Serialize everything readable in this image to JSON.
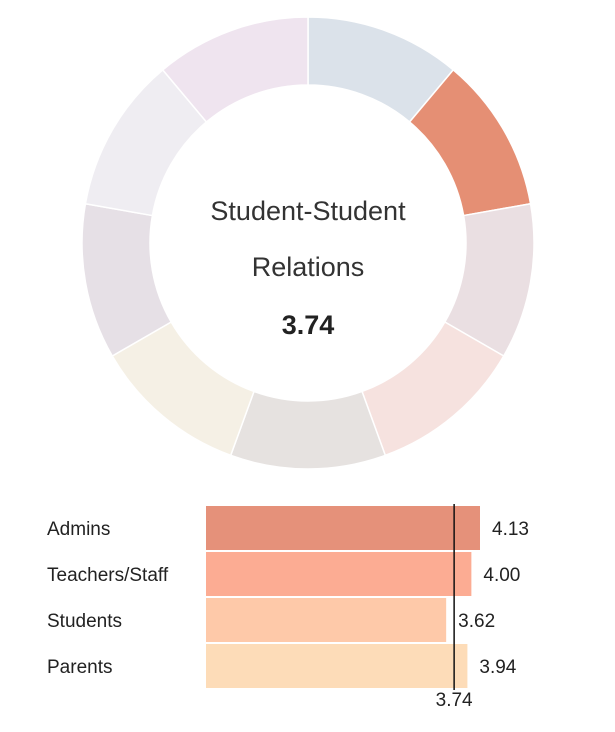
{
  "chart_data": [
    {
      "type": "pie",
      "subtype": "donut",
      "center_title": [
        "Student-Student",
        "Relations"
      ],
      "center_value": "3.74",
      "segments": [
        {
          "value": 1,
          "color": "#dbe2ea"
        },
        {
          "value": 1,
          "color": "#e58f74"
        },
        {
          "value": 1,
          "color": "#eadfe2"
        },
        {
          "value": 1,
          "color": "#f6e2df"
        },
        {
          "value": 1,
          "color": "#e6e2e0"
        },
        {
          "value": 1,
          "color": "#f5f0e5"
        },
        {
          "value": 1,
          "color": "#e6e0e6"
        },
        {
          "value": 1,
          "color": "#efedf2"
        },
        {
          "value": 1,
          "color": "#efe4ef"
        }
      ]
    },
    {
      "type": "bar",
      "orientation": "horizontal",
      "categories": [
        "Admins",
        "Teachers/Staff",
        "Students",
        "Parents"
      ],
      "values": [
        4.13,
        4.0,
        3.62,
        3.94
      ],
      "value_labels": [
        "4.13",
        "4.00",
        "3.62",
        "3.94"
      ],
      "colors": [
        "#e5917a",
        "#fcac93",
        "#fec9a9",
        "#fddcb8"
      ],
      "reference_value": 3.74,
      "reference_label": "3.74",
      "xlim": [
        0,
        5
      ]
    }
  ]
}
